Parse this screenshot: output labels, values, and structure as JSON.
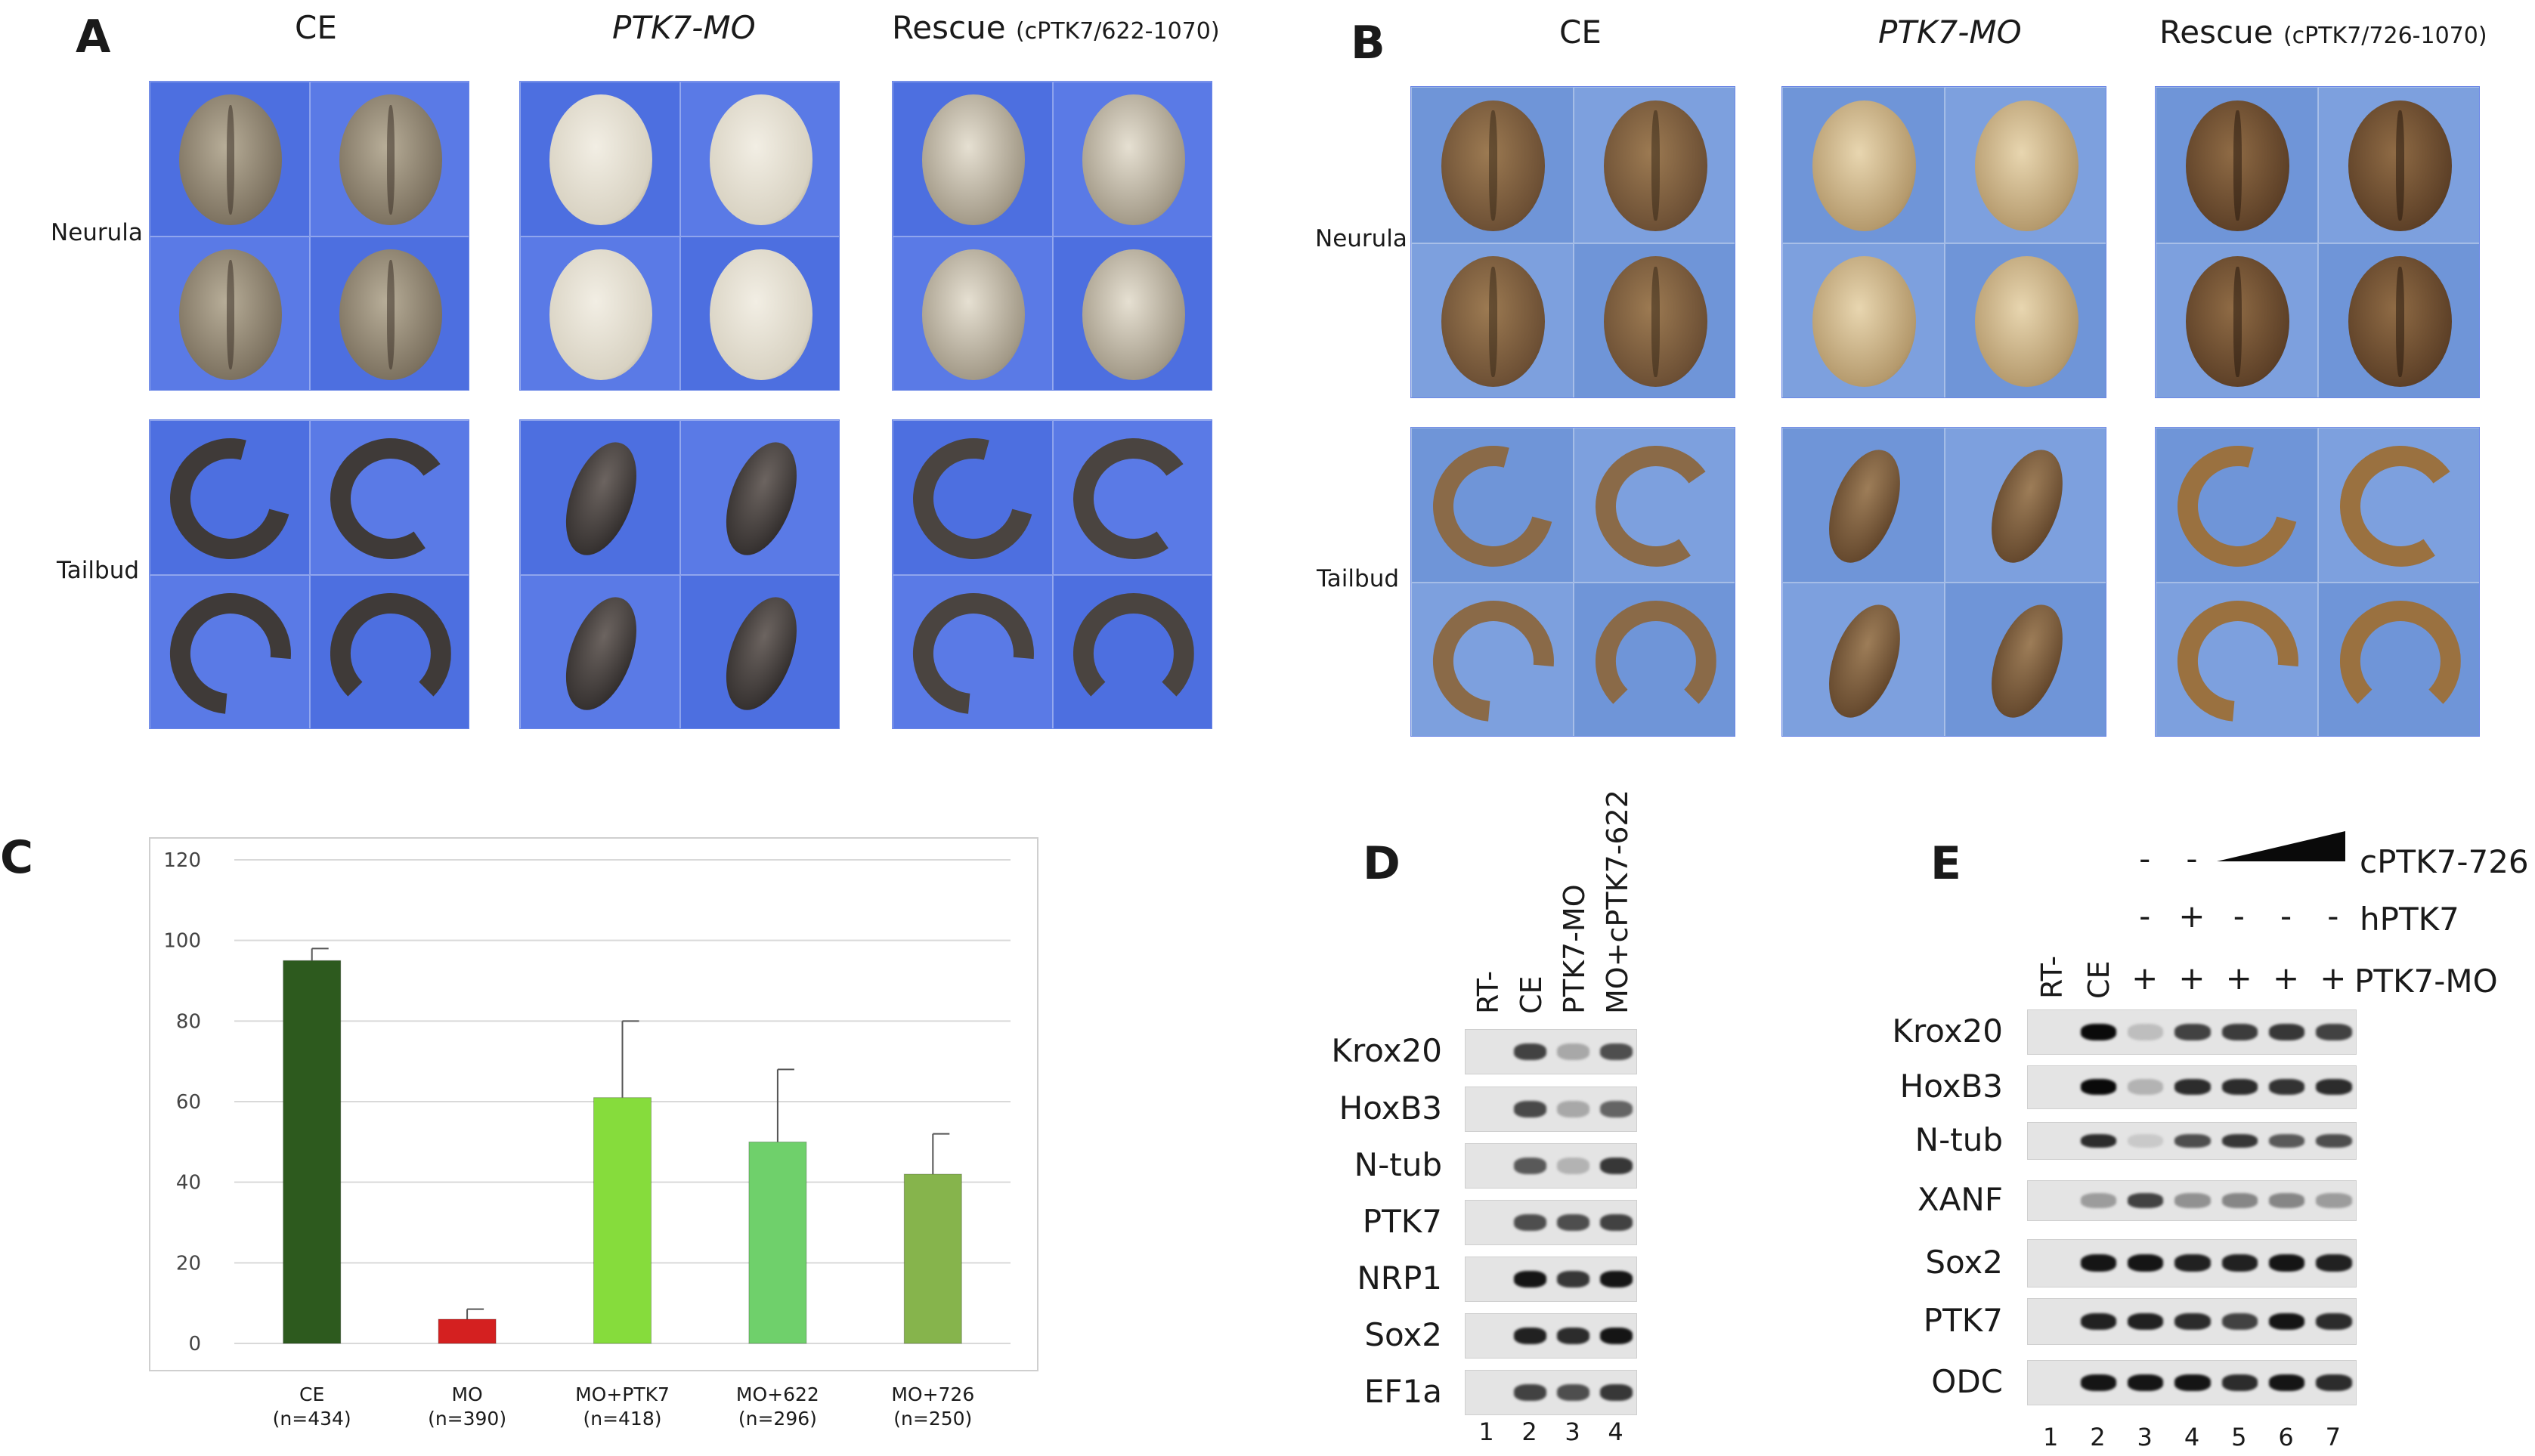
{
  "panels": {
    "A": {
      "letter": "A",
      "columns": [
        {
          "plain": "CE"
        },
        {
          "italic": "PTK7-MO"
        },
        {
          "plain": "Rescue",
          "sub": "(cPTK7/622-1070)"
        }
      ],
      "rows": [
        "Neurula",
        "Tailbud"
      ]
    },
    "B": {
      "letter": "B",
      "columns": [
        {
          "plain": "CE"
        },
        {
          "italic": "PTK7-MO"
        },
        {
          "plain": "Rescue",
          "sub": "(cPTK7/726-1070)"
        }
      ],
      "rows": [
        "Neurula",
        "Tailbud"
      ]
    },
    "C": {
      "letter": "C",
      "chart_data": {
        "type": "bar",
        "categories": [
          "CE",
          "MO",
          "MO+PTK7",
          "MO+622",
          "MO+726"
        ],
        "category_n": [
          "(n=434)",
          "(n=390)",
          "(n=418)",
          "(n=296)",
          "(n=250)"
        ],
        "values": [
          95,
          6,
          61,
          50,
          42
        ],
        "errors": [
          3,
          2.5,
          19,
          18,
          10
        ],
        "colors": [
          "#2d5a1e",
          "#d42020",
          "#86dc3c",
          "#6fd06b",
          "#86b44c"
        ],
        "ylim": [
          0,
          120
        ],
        "yticks": [
          0,
          20,
          40,
          60,
          80,
          100,
          120
        ],
        "grid": true,
        "title": "",
        "xlabel": "",
        "ylabel": ""
      }
    },
    "D": {
      "letter": "D",
      "lane_labels": [
        "RT-",
        "CE",
        "PTK7-MO",
        "MO+cPTK7-622"
      ],
      "genes": [
        "Krox20",
        "HoxB3",
        "N-tub",
        "PTK7",
        "NRP1",
        "Sox2",
        "EF1a"
      ],
      "lane_numbers": [
        "1",
        "2",
        "3",
        "4"
      ]
    },
    "E": {
      "letter": "E",
      "cond_rows": [
        {
          "name": "cPTK7-726",
          "marks": [
            "",
            "",
            "-",
            "-",
            "",
            "",
            ""
          ]
        },
        {
          "name": "hPTK7",
          "marks": [
            "",
            "",
            "-",
            "+",
            "-",
            "-",
            "-"
          ]
        },
        {
          "name": "PTK7-MO",
          "marks": [
            "",
            "",
            "+",
            "+",
            "+",
            "+",
            "+"
          ]
        }
      ],
      "lane_labels": [
        "RT-",
        "CE"
      ],
      "genes": [
        "Krox20",
        "HoxB3",
        "N-tub",
        "XANF",
        "Sox2",
        "PTK7",
        "ODC"
      ],
      "lane_numbers": [
        "1",
        "2",
        "3",
        "4",
        "5",
        "6",
        "7"
      ]
    }
  }
}
